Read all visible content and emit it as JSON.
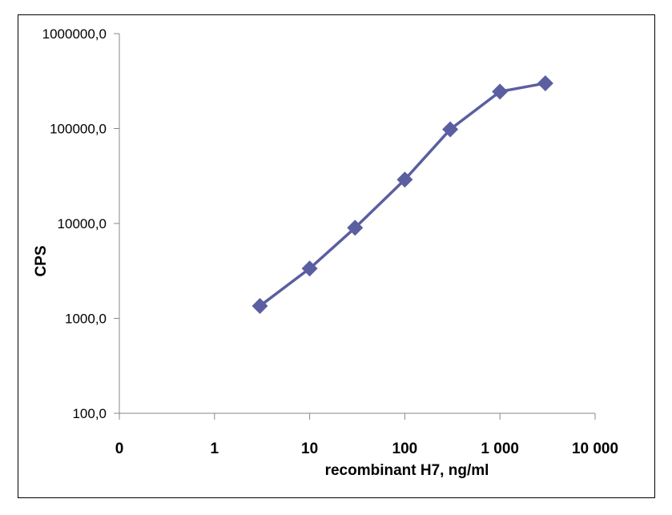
{
  "chart_data": {
    "type": "line",
    "title": "",
    "xlabel": "recombinant H7, ng/ml",
    "ylabel": "CPS",
    "x_scale": "log",
    "y_scale": "log",
    "x_ticks": [
      "0",
      "1",
      "10",
      "100",
      "1 000",
      "10 000"
    ],
    "y_ticks": [
      "1000000,0",
      "100000,0",
      "10000,0",
      "1000,0",
      "100,0"
    ],
    "ylim": [
      100,
      1000000
    ],
    "grid": false,
    "legend": "none",
    "series": [
      {
        "color": "#5B5EA0",
        "marker": "diamond",
        "x": [
          3,
          10,
          30,
          100,
          300,
          1000,
          3000
        ],
        "y": [
          1350,
          3350,
          9000,
          29000,
          98000,
          245000,
          300000
        ]
      }
    ]
  }
}
